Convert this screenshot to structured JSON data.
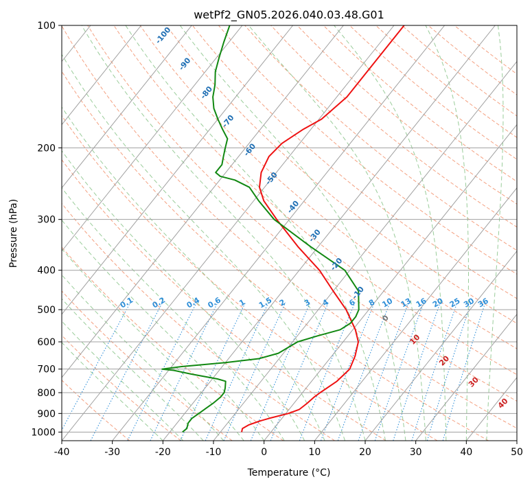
{
  "chart_data": {
    "type": "skew-t",
    "title": "wetPf2_GN05.2026.040.03.48.G01",
    "xlabel": "Temperature (°C)",
    "ylabel": "Pressure (hPa)",
    "xlim": [
      -40,
      50
    ],
    "ylim": [
      1050,
      100
    ],
    "xticks": [
      -40,
      -30,
      -20,
      -10,
      0,
      10,
      20,
      30,
      40,
      50
    ],
    "yticks": [
      100,
      200,
      300,
      400,
      500,
      600,
      700,
      800,
      900,
      1000
    ],
    "colors": {
      "temperature": "#ee1111",
      "dewpoint": "#118811",
      "isotherm": "#a0a0a0",
      "dry_adiabat": "#f4a080",
      "moist_adiabat": "#99cc99",
      "mixing_ratio": "#2f8fd8",
      "dry_label": "#1f6fb4",
      "moist_label": "#cc2222",
      "zero_label": "#777777"
    },
    "series": [
      {
        "name": "temperature",
        "points": [
          [
            1000,
            -5.8
          ],
          [
            980,
            -6.2
          ],
          [
            960,
            -5.5
          ],
          [
            940,
            -4.0
          ],
          [
            925,
            -2.5
          ],
          [
            900,
            0.5
          ],
          [
            880,
            2.0
          ],
          [
            850,
            2.6
          ],
          [
            820,
            3.0
          ],
          [
            800,
            3.5
          ],
          [
            750,
            5.0
          ],
          [
            700,
            5.6
          ],
          [
            650,
            4.6
          ],
          [
            600,
            3.0
          ],
          [
            560,
            0.5
          ],
          [
            500,
            -4.5
          ],
          [
            450,
            -10.0
          ],
          [
            400,
            -16.0
          ],
          [
            350,
            -24.0
          ],
          [
            300,
            -32.5
          ],
          [
            270,
            -38.0
          ],
          [
            250,
            -41.0
          ],
          [
            230,
            -43.0
          ],
          [
            210,
            -44.0
          ],
          [
            195,
            -43.5
          ],
          [
            180,
            -41.5
          ],
          [
            170,
            -39.5
          ],
          [
            150,
            -38.0
          ],
          [
            130,
            -38.0
          ],
          [
            110,
            -38.0
          ],
          [
            100,
            -38.0
          ]
        ]
      },
      {
        "name": "dewpoint",
        "points": [
          [
            1000,
            -17.5
          ],
          [
            980,
            -17.2
          ],
          [
            950,
            -17.8
          ],
          [
            925,
            -17.8
          ],
          [
            900,
            -17.2
          ],
          [
            870,
            -16.5
          ],
          [
            850,
            -16.0
          ],
          [
            820,
            -15.5
          ],
          [
            800,
            -15.5
          ],
          [
            780,
            -16.0
          ],
          [
            750,
            -17.0
          ],
          [
            740,
            -19.0
          ],
          [
            720,
            -25.0
          ],
          [
            705,
            -29.0
          ],
          [
            700,
            -31.5
          ],
          [
            690,
            -28.0
          ],
          [
            675,
            -20.0
          ],
          [
            660,
            -14.0
          ],
          [
            640,
            -11.0
          ],
          [
            620,
            -10.0
          ],
          [
            600,
            -9.0
          ],
          [
            580,
            -6.0
          ],
          [
            560,
            -2.5
          ],
          [
            540,
            -1.5
          ],
          [
            520,
            -1.5
          ],
          [
            500,
            -2.0
          ],
          [
            450,
            -5.0
          ],
          [
            400,
            -11.0
          ],
          [
            350,
            -21.5
          ],
          [
            300,
            -33.0
          ],
          [
            270,
            -39.0
          ],
          [
            250,
            -43.0
          ],
          [
            240,
            -47.0
          ],
          [
            235,
            -50.5
          ],
          [
            230,
            -52.0
          ],
          [
            220,
            -52.0
          ],
          [
            210,
            -53.0
          ],
          [
            200,
            -54.0
          ],
          [
            190,
            -55.0
          ],
          [
            180,
            -57.5
          ],
          [
            170,
            -60.0
          ],
          [
            160,
            -62.5
          ],
          [
            150,
            -64.5
          ],
          [
            140,
            -66.0
          ],
          [
            130,
            -68.0
          ],
          [
            120,
            -69.5
          ],
          [
            110,
            -71.0
          ],
          [
            100,
            -72.5
          ]
        ]
      }
    ],
    "dry_adiabat_labels": [
      "-100",
      "-90",
      "-80",
      "-70",
      "-60",
      "-50",
      "-40",
      "-30",
      "-20",
      "-10"
    ],
    "moist_adiabat_labels": [
      "0",
      "10",
      "20",
      "30",
      "40"
    ],
    "mixing_ratio_labels": [
      "0.1",
      "0.2",
      "0.4",
      "0.6",
      "1",
      "1.5",
      "2",
      "3",
      "4",
      "6",
      "8",
      "10",
      "13",
      "16",
      "20",
      "25",
      "30",
      "36"
    ]
  }
}
